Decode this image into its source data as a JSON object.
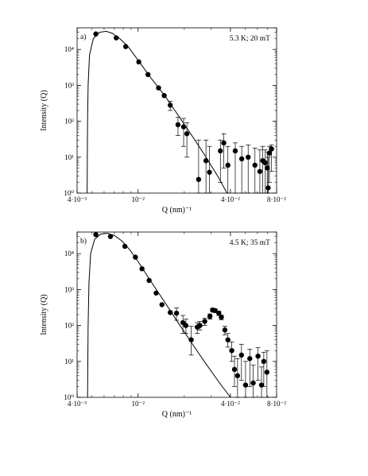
{
  "chart_data": [
    {
      "type": "scatter",
      "panel_label": "a)",
      "annotation": "5.3 K; 20 mT",
      "xlabel": "Q (nm)⁻¹",
      "ylabel": "Intensity (Q)",
      "xscale": "log",
      "yscale": "log",
      "xlim": [
        0.004,
        0.08
      ],
      "ylim": [
        1,
        40000
      ],
      "x_ticks": [
        {
          "value": 0.004,
          "label": "4·10⁻³"
        },
        {
          "value": 0.01,
          "label": "10⁻²"
        },
        {
          "value": 0.04,
          "label": "4·10⁻²"
        },
        {
          "value": 0.08,
          "label": "8·10⁻²"
        }
      ],
      "y_ticks": [
        {
          "value": 1,
          "label": "10⁰"
        },
        {
          "value": 10,
          "label": "10¹"
        },
        {
          "value": 100,
          "label": "10²"
        },
        {
          "value": 1000,
          "label": "10³"
        },
        {
          "value": 10000,
          "label": "10⁴"
        }
      ],
      "grid": false,
      "points": [
        {
          "x": 0.0053,
          "y": 27000
        },
        {
          "x": 0.0072,
          "y": 21000
        },
        {
          "x": 0.0083,
          "y": 12000
        },
        {
          "x": 0.0101,
          "y": 4500
        },
        {
          "x": 0.0116,
          "y": 2000
        },
        {
          "x": 0.0136,
          "y": 850
        },
        {
          "x": 0.0148,
          "y": 520
        },
        {
          "x": 0.0162,
          "y": 280,
          "yerr_low": 200,
          "yerr_high": 360
        },
        {
          "x": 0.0182,
          "y": 80,
          "yerr_low": 40,
          "yerr_high": 130
        },
        {
          "x": 0.0198,
          "y": 70,
          "yerr_low": 20,
          "yerr_high": 120
        },
        {
          "x": 0.0208,
          "y": 45,
          "yerr_low": 10,
          "yerr_high": 90
        },
        {
          "x": 0.0248,
          "y": 2.4,
          "yerr_low": 1,
          "yerr_high": 30
        },
        {
          "x": 0.0277,
          "y": 8,
          "yerr_low": 1,
          "yerr_high": 30
        },
        {
          "x": 0.0292,
          "y": 3.8,
          "yerr_low": 1,
          "yerr_high": 20
        },
        {
          "x": 0.0344,
          "y": 15,
          "yerr_low": 2,
          "yerr_high": 30
        },
        {
          "x": 0.0362,
          "y": 25,
          "yerr_low": 5,
          "yerr_high": 45
        },
        {
          "x": 0.0385,
          "y": 6,
          "yerr_low": 1,
          "yerr_high": 20
        },
        {
          "x": 0.043,
          "y": 15,
          "yerr_low": 1,
          "yerr_high": 25
        },
        {
          "x": 0.0474,
          "y": 9,
          "yerr_low": 1,
          "yerr_high": 20
        },
        {
          "x": 0.0522,
          "y": 10,
          "yerr_low": 1,
          "yerr_high": 22
        },
        {
          "x": 0.0578,
          "y": 6,
          "yerr_low": 1,
          "yerr_high": 18
        },
        {
          "x": 0.0622,
          "y": 4,
          "yerr_low": 1,
          "yerr_high": 16
        },
        {
          "x": 0.065,
          "y": 8,
          "yerr_low": 1,
          "yerr_high": 20
        },
        {
          "x": 0.0675,
          "y": 7,
          "yerr_low": 1,
          "yerr_high": 16
        },
        {
          "x": 0.0695,
          "y": 5,
          "yerr_low": 1,
          "yerr_high": 14
        },
        {
          "x": 0.0705,
          "y": 1.4,
          "yerr_low": 1,
          "yerr_high": 10
        },
        {
          "x": 0.0718,
          "y": 13,
          "yerr_low": 2,
          "yerr_high": 20
        },
        {
          "x": 0.0742,
          "y": 17,
          "yerr_low": 4,
          "yerr_high": 22
        }
      ],
      "fit_curve": [
        {
          "x": 0.00465,
          "y": 1
        },
        {
          "x": 0.00468,
          "y": 100
        },
        {
          "x": 0.00472,
          "y": 1000
        },
        {
          "x": 0.00482,
          "y": 7000
        },
        {
          "x": 0.0051,
          "y": 20000
        },
        {
          "x": 0.0056,
          "y": 30000
        },
        {
          "x": 0.0062,
          "y": 32000
        },
        {
          "x": 0.0068,
          "y": 28000
        },
        {
          "x": 0.0076,
          "y": 20000
        },
        {
          "x": 0.0086,
          "y": 12000
        },
        {
          "x": 0.01,
          "y": 5000
        },
        {
          "x": 0.012,
          "y": 1700
        },
        {
          "x": 0.015,
          "y": 500
        },
        {
          "x": 0.018,
          "y": 160
        },
        {
          "x": 0.022,
          "y": 45
        },
        {
          "x": 0.027,
          "y": 12
        },
        {
          "x": 0.033,
          "y": 3
        },
        {
          "x": 0.038,
          "y": 1
        }
      ]
    },
    {
      "type": "scatter",
      "panel_label": "b)",
      "annotation": "4.5 K; 35 mT",
      "xlabel": "Q (nm)⁻¹",
      "ylabel": "Intensity (Q)",
      "xscale": "log",
      "yscale": "log",
      "xlim": [
        0.004,
        0.08
      ],
      "ylim": [
        1,
        40000
      ],
      "x_ticks": [
        {
          "value": 0.004,
          "label": "4·10⁻³"
        },
        {
          "value": 0.01,
          "label": "10⁻²"
        },
        {
          "value": 0.04,
          "label": "4·10⁻²"
        },
        {
          "value": 0.08,
          "label": "8·10⁻²"
        }
      ],
      "y_ticks": [
        {
          "value": 1,
          "label": "10⁰"
        },
        {
          "value": 10,
          "label": "10¹"
        },
        {
          "value": 100,
          "label": "10²"
        },
        {
          "value": 1000,
          "label": "10³"
        },
        {
          "value": 10000,
          "label": "10⁴"
        }
      ],
      "grid": false,
      "points": [
        {
          "x": 0.0053,
          "y": 34000
        },
        {
          "x": 0.0066,
          "y": 30000
        },
        {
          "x": 0.0082,
          "y": 16000
        },
        {
          "x": 0.0096,
          "y": 8000
        },
        {
          "x": 0.0106,
          "y": 3800
        },
        {
          "x": 0.0118,
          "y": 1800
        },
        {
          "x": 0.0131,
          "y": 800
        },
        {
          "x": 0.0143,
          "y": 380
        },
        {
          "x": 0.0162,
          "y": 230
        },
        {
          "x": 0.0178,
          "y": 220,
          "yerr_low": 140,
          "yerr_high": 310
        },
        {
          "x": 0.0196,
          "y": 120,
          "yerr_low": 60,
          "yerr_high": 190
        },
        {
          "x": 0.0205,
          "y": 100,
          "yerr_low": 60,
          "yerr_high": 150
        },
        {
          "x": 0.0222,
          "y": 40,
          "yerr_low": 15,
          "yerr_high": 95
        },
        {
          "x": 0.0243,
          "y": 90,
          "yerr_low": 60,
          "yerr_high": 120
        },
        {
          "x": 0.0253,
          "y": 100,
          "yerr_low": 75,
          "yerr_high": 130
        },
        {
          "x": 0.0272,
          "y": 130,
          "yerr_low": 100,
          "yerr_high": 160
        },
        {
          "x": 0.0294,
          "y": 180,
          "yerr_low": 150,
          "yerr_high": 210
        },
        {
          "x": 0.0306,
          "y": 270,
          "yerr_low": 240,
          "yerr_high": 300
        },
        {
          "x": 0.0318,
          "y": 260,
          "yerr_low": 230,
          "yerr_high": 290
        },
        {
          "x": 0.0336,
          "y": 220,
          "yerr_low": 190,
          "yerr_high": 250
        },
        {
          "x": 0.0349,
          "y": 170,
          "yerr_low": 145,
          "yerr_high": 195
        },
        {
          "x": 0.0368,
          "y": 75,
          "yerr_low": 55,
          "yerr_high": 95
        },
        {
          "x": 0.0385,
          "y": 40,
          "yerr_low": 25,
          "yerr_high": 60
        },
        {
          "x": 0.0408,
          "y": 20,
          "yerr_low": 10,
          "yerr_high": 35
        },
        {
          "x": 0.0425,
          "y": 6,
          "yerr_low": 2,
          "yerr_high": 14
        },
        {
          "x": 0.0445,
          "y": 4,
          "yerr_low": 1,
          "yerr_high": 12
        },
        {
          "x": 0.0472,
          "y": 15,
          "yerr_low": 3,
          "yerr_high": 30
        },
        {
          "x": 0.0502,
          "y": 2.2,
          "yerr_low": 1,
          "yerr_high": 10
        },
        {
          "x": 0.0535,
          "y": 12,
          "yerr_low": 2,
          "yerr_high": 22
        },
        {
          "x": 0.0563,
          "y": 2.5,
          "yerr_low": 1,
          "yerr_high": 8
        },
        {
          "x": 0.0605,
          "y": 14,
          "yerr_low": 3,
          "yerr_high": 24
        },
        {
          "x": 0.0638,
          "y": 2.2,
          "yerr_low": 1,
          "yerr_high": 7
        },
        {
          "x": 0.066,
          "y": 10,
          "yerr_low": 2,
          "yerr_high": 18
        },
        {
          "x": 0.0692,
          "y": 5,
          "yerr_low": 1,
          "yerr_high": 20
        }
      ],
      "fit_curve": [
        {
          "x": 0.00468,
          "y": 1
        },
        {
          "x": 0.00472,
          "y": 100
        },
        {
          "x": 0.00478,
          "y": 1500
        },
        {
          "x": 0.0049,
          "y": 10000
        },
        {
          "x": 0.0052,
          "y": 25000
        },
        {
          "x": 0.0057,
          "y": 35000
        },
        {
          "x": 0.0063,
          "y": 37000
        },
        {
          "x": 0.007,
          "y": 32000
        },
        {
          "x": 0.0078,
          "y": 23000
        },
        {
          "x": 0.0088,
          "y": 13000
        },
        {
          "x": 0.01,
          "y": 6000
        },
        {
          "x": 0.012,
          "y": 1800
        },
        {
          "x": 0.015,
          "y": 430
        },
        {
          "x": 0.018,
          "y": 130
        },
        {
          "x": 0.022,
          "y": 36
        },
        {
          "x": 0.027,
          "y": 10
        },
        {
          "x": 0.034,
          "y": 2.5
        },
        {
          "x": 0.04,
          "y": 1
        }
      ]
    }
  ]
}
